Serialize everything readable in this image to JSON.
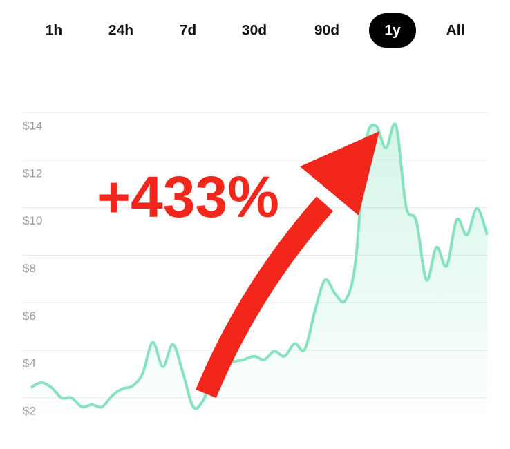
{
  "ranges": [
    "1h",
    "24h",
    "7d",
    "30d",
    "90d",
    "1y",
    "All"
  ],
  "selected_range": 5,
  "chart_data": {
    "type": "line",
    "annotation": "+433%",
    "color": "#86e3be",
    "ylim": [
      1.3,
      14
    ],
    "yticks": [
      {
        "value": 2,
        "label": "$2"
      },
      {
        "value": 4,
        "label": "$4"
      },
      {
        "value": 6,
        "label": "$6"
      },
      {
        "value": 8,
        "label": "$8"
      },
      {
        "value": 10,
        "label": "$10"
      },
      {
        "value": 12,
        "label": "$12"
      },
      {
        "value": 14,
        "label": "$14"
      }
    ],
    "grid": true,
    "values": [
      2.44,
      2.64,
      2.44,
      2.0,
      2.0,
      1.62,
      1.71,
      1.62,
      2.09,
      2.38,
      2.5,
      3.02,
      4.34,
      3.31,
      4.25,
      3.02,
      1.62,
      1.91,
      3.02,
      3.4,
      3.52,
      3.61,
      3.75,
      3.61,
      3.96,
      3.75,
      4.28,
      4.04,
      5.65,
      6.96,
      6.38,
      6.09,
      7.69,
      12.66,
      13.45,
      12.51,
      13.45,
      10.03,
      9.45,
      6.96,
      8.34,
      7.55,
      9.5,
      8.86,
      9.97,
      8.86
    ]
  }
}
